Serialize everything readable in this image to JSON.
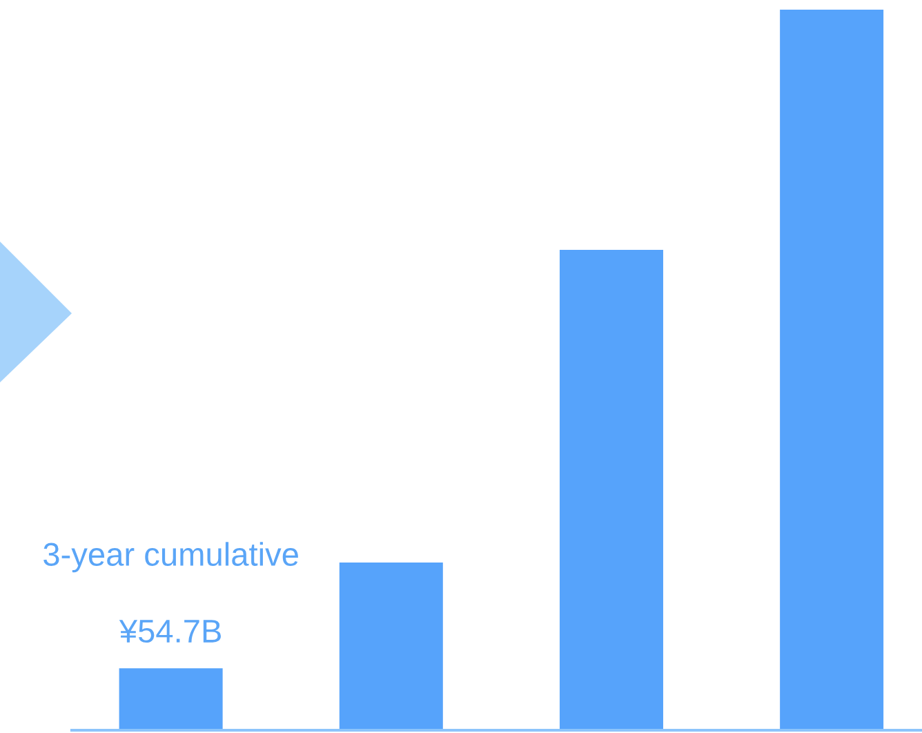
{
  "chart_data": {
    "type": "bar",
    "categories": [
      null,
      null,
      null,
      null
    ],
    "values": [
      54.7,
      148,
      424,
      636
    ],
    "tick_labels": false,
    "color": "#56a3fb",
    "value_labels": [
      "¥54.7B",
      null,
      null,
      null
    ],
    "annotations": [
      "3-year cumulative"
    ],
    "grid": false,
    "legend": false
  }
}
